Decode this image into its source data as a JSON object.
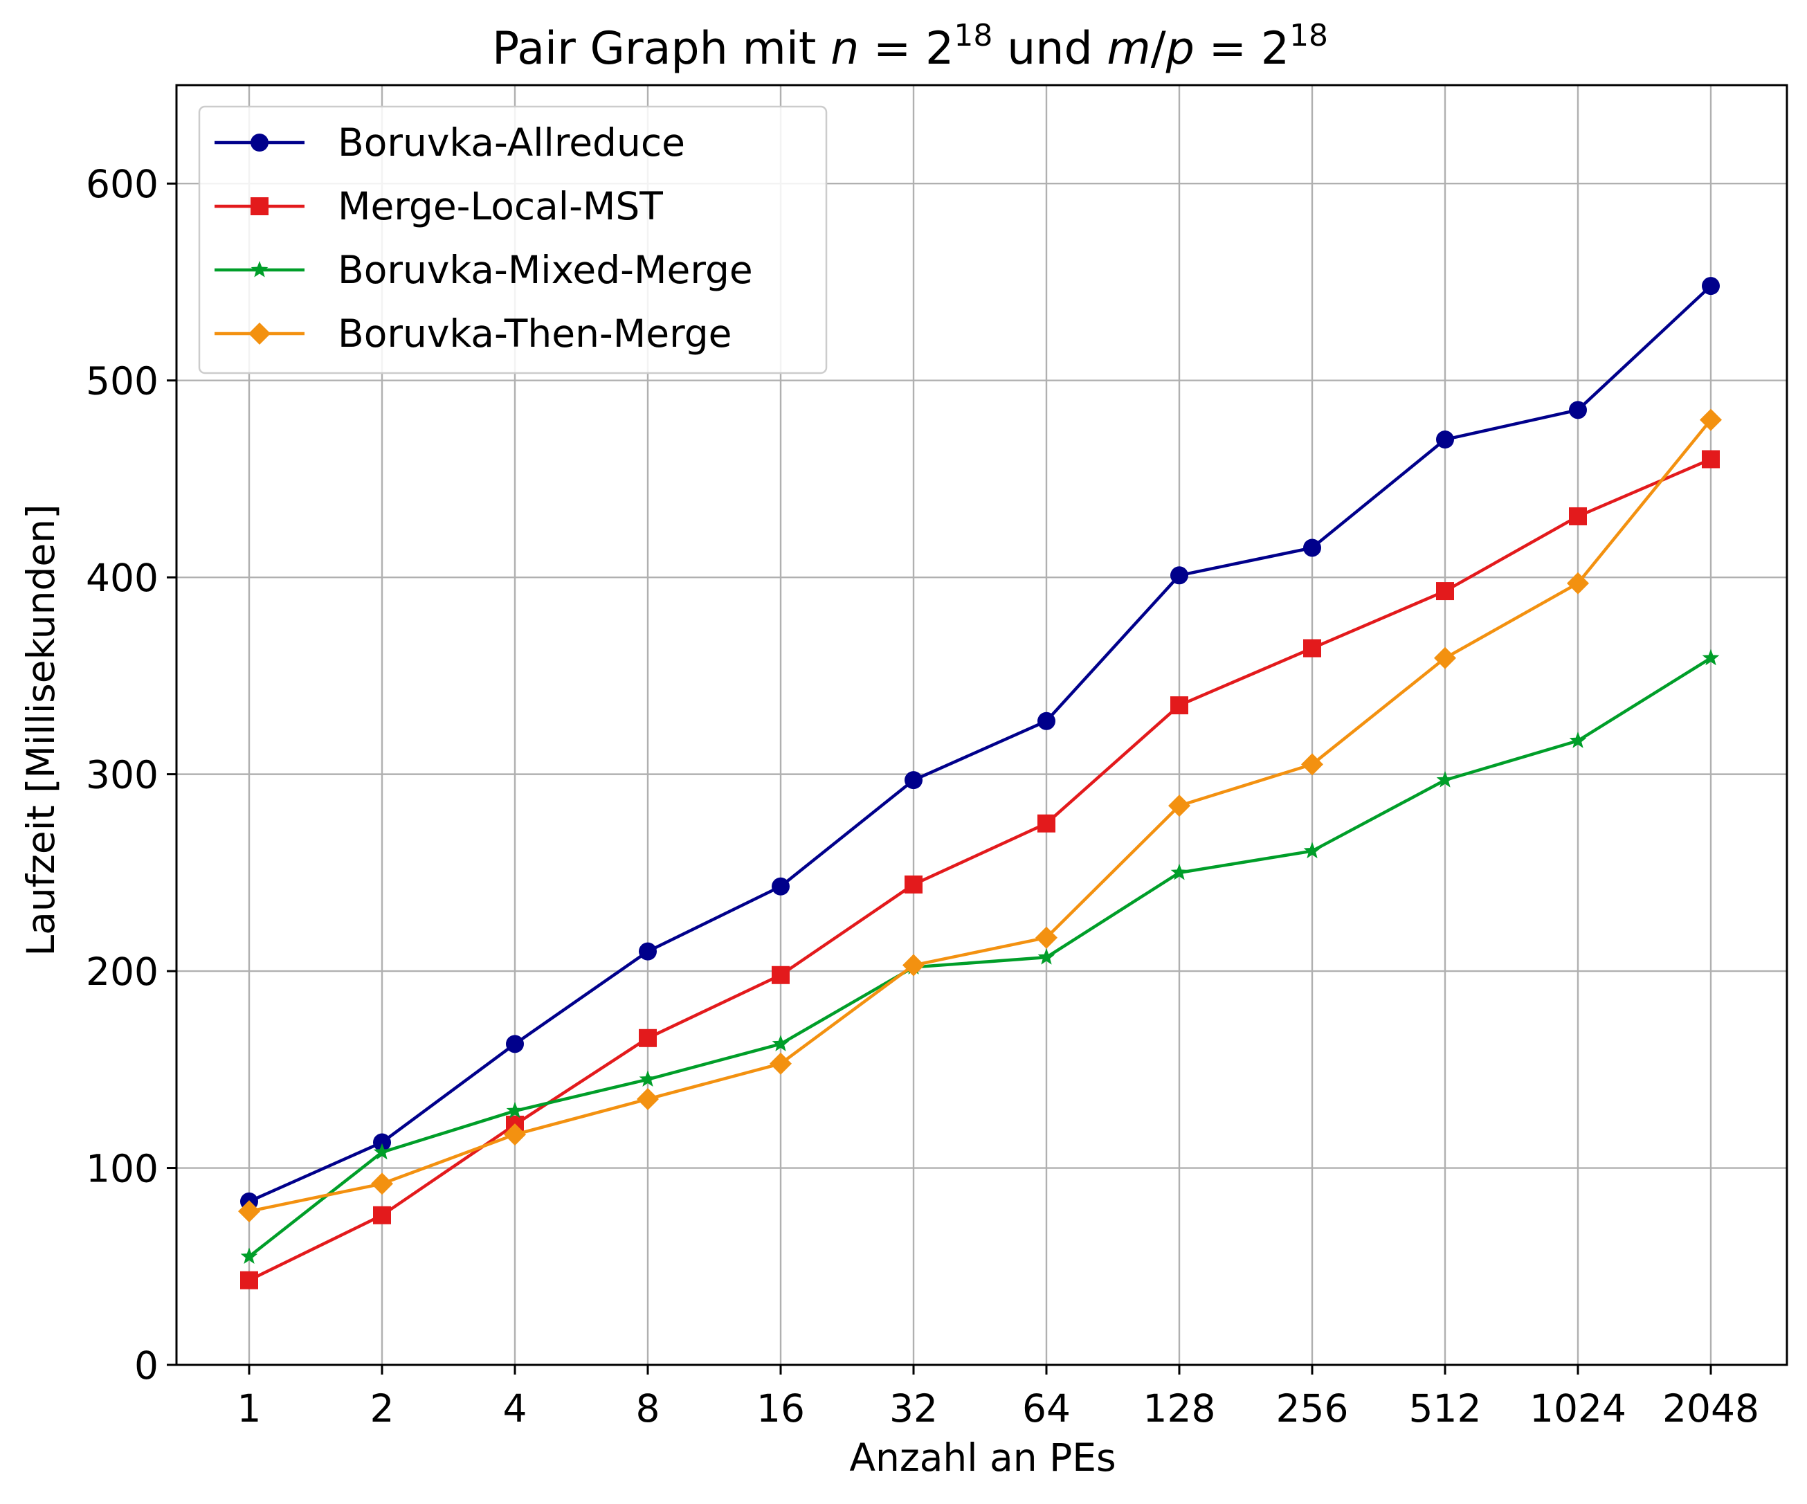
{
  "chart_data": {
    "type": "line",
    "title": {
      "prefix": "Pair Graph mit ",
      "var_n": "n",
      "equals1": " = 2",
      "sup1": "18",
      "middle": " und ",
      "var_m": "m",
      "slash": "/",
      "var_p": "p",
      "equals2": " = 2",
      "sup2": "18"
    },
    "xlabel": "Anzahl an PEs",
    "ylabel": "Laufzeit [Millisekunden]",
    "categories": [
      "1",
      "2",
      "4",
      "8",
      "16",
      "32",
      "64",
      "128",
      "256",
      "512",
      "1024",
      "2048"
    ],
    "ylim": [
      0,
      650
    ],
    "yticks": [
      "0",
      "100",
      "200",
      "300",
      "400",
      "500",
      "600"
    ],
    "grid": true,
    "legend_position": "top-left",
    "series": [
      {
        "name": "Boruvka-Allreduce",
        "color": "#00008B",
        "marker": "circle",
        "values": [
          83,
          113,
          163,
          210,
          243,
          297,
          327,
          401,
          415,
          470,
          485,
          548
        ]
      },
      {
        "name": "Merge-Local-MST",
        "color": "#E31A1C",
        "marker": "square",
        "values": [
          43,
          76,
          122,
          166,
          198,
          244,
          275,
          335,
          364,
          393,
          431,
          460
        ]
      },
      {
        "name": "Boruvka-Mixed-Merge",
        "color": "#009E29",
        "marker": "star",
        "values": [
          55,
          108,
          129,
          145,
          163,
          202,
          207,
          250,
          261,
          297,
          317,
          359
        ]
      },
      {
        "name": "Boruvka-Then-Merge",
        "color": "#F39110",
        "marker": "diamond",
        "values": [
          78,
          92,
          117,
          135,
          153,
          203,
          217,
          284,
          305,
          359,
          397,
          480
        ]
      }
    ]
  }
}
